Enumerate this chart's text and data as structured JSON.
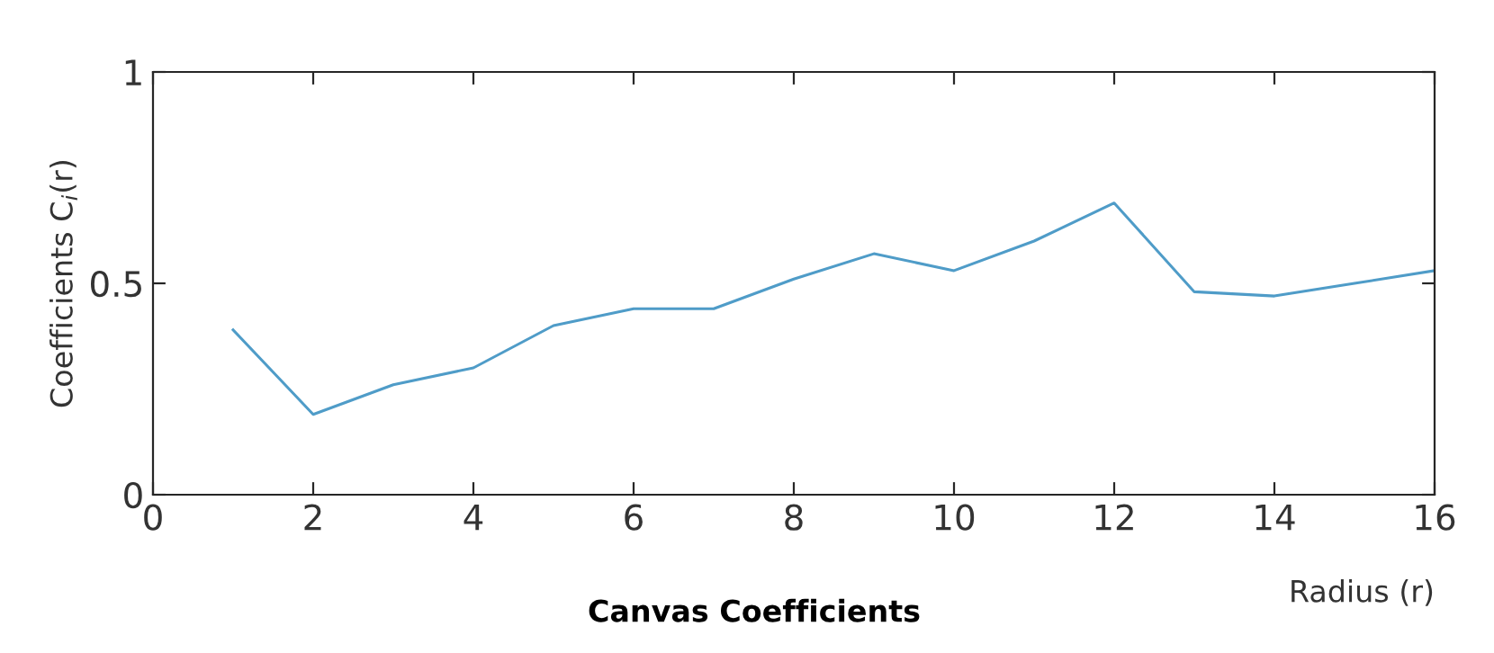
{
  "chart_data": {
    "type": "line",
    "title": "Canvas Coefficients",
    "xlabel": "Radius (r)",
    "ylabel": "Coefficients C$_{i}$(r)",
    "x": [
      1,
      2,
      3,
      4,
      5,
      6,
      7,
      8,
      9,
      10,
      11,
      12,
      13,
      14,
      15,
      16
    ],
    "series": [
      {
        "color": "#4f9cc8",
        "values": [
          0.39,
          0.19,
          0.26,
          0.3,
          0.4,
          0.44,
          0.44,
          0.51,
          0.57,
          0.53,
          0.6,
          0.69,
          0.48,
          0.47,
          0.5,
          0.53
        ]
      }
    ],
    "xlim": [
      0,
      16
    ],
    "xticks": [
      0,
      2,
      4,
      6,
      8,
      10,
      12,
      14,
      16
    ],
    "ylim": [
      0,
      1
    ],
    "yticks": [
      0,
      0.5,
      1
    ],
    "grid": false,
    "legend": false,
    "marker": "none",
    "line_style": "solid"
  }
}
